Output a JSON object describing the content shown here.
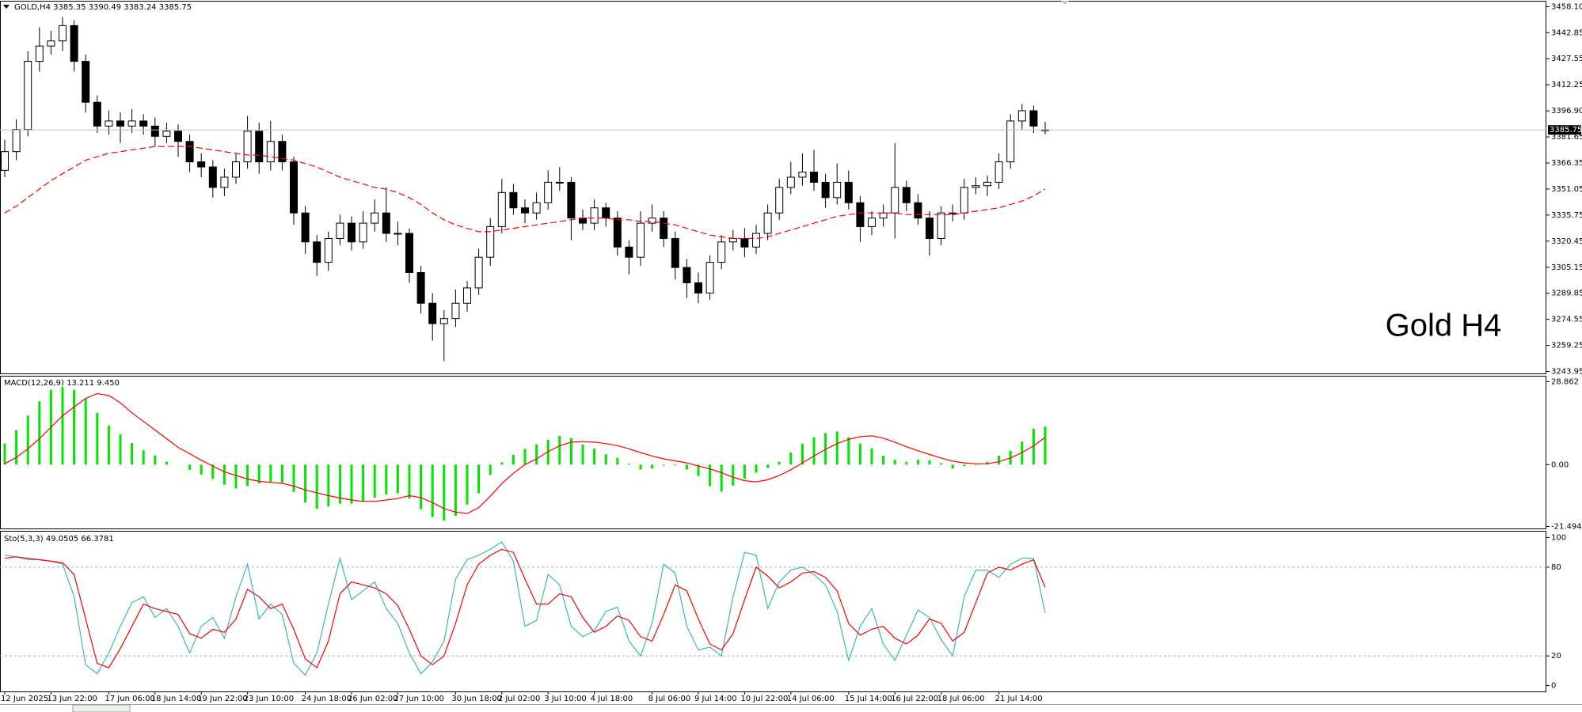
{
  "chart_data": [
    {
      "type": "candlestick",
      "title": "GOLD,H4  3385.35 3390.49 3383.24 3385.75",
      "annotation": "Gold H4",
      "bull_color": "#ffffff",
      "bear_color": "#000000",
      "current_line_color": "#c0c0c0",
      "categories": [
        "12 Jun 2025",
        null,
        null,
        null,
        "13 Jun 22:00",
        null,
        null,
        null,
        null,
        "17 Jun 06:00",
        null,
        null,
        null,
        "18 Jun 14:00",
        null,
        null,
        null,
        "19 Jun 22:00",
        null,
        null,
        null,
        "23 Jun 10:00",
        null,
        null,
        null,
        null,
        "24 Jun 18:00",
        null,
        null,
        null,
        "26 Jun 02:00",
        null,
        null,
        null,
        "27 Jun 10:00",
        null,
        null,
        null,
        null,
        "30 Jun 18:00",
        null,
        null,
        null,
        "2 Jul 02:00",
        null,
        null,
        null,
        "3 Jul 10:00",
        null,
        null,
        null,
        "4 Jul 18:00",
        null,
        null,
        null,
        null,
        "8 Jul 06:00",
        null,
        null,
        null,
        "9 Jul 14:00",
        null,
        null,
        null,
        "10 Jul 22:00",
        null,
        null,
        null,
        "14 Jul 06:00",
        null,
        null,
        null,
        null,
        "15 Jul 14:00",
        null,
        null,
        null,
        "16 Jul 22:00",
        null,
        null,
        null,
        "18 Jul 06:00",
        null,
        null,
        null,
        null,
        "21 Jul 14:00",
        null,
        null,
        null,
        null
      ],
      "open": [
        3362,
        3373,
        3386,
        3426,
        3435,
        3438,
        3447,
        3426,
        3402,
        3388,
        3391,
        3388,
        3391,
        3388,
        3382,
        3385,
        3379,
        3367,
        3364,
        3352,
        3358,
        3367,
        3385,
        3367,
        3379,
        3367,
        3337,
        3320,
        3308,
        3322,
        3331,
        3320,
        3331,
        3337,
        3325,
        3325,
        3302,
        3284,
        3272,
        3275,
        3284,
        3293,
        3311,
        3329,
        3349,
        3340,
        3337,
        3343,
        3355,
        3355,
        3334,
        3331,
        3340,
        3334,
        3317,
        3311,
        3331,
        3334,
        3322,
        3305,
        3296,
        3290,
        3308,
        3320,
        3322,
        3317,
        3325,
        3337,
        3352,
        3358,
        3361,
        3355,
        3346,
        3355,
        3343,
        3329,
        3334,
        3337,
        3352,
        3343,
        3334,
        3322,
        3337,
        3337,
        3352,
        3353,
        3355,
        3367,
        3391,
        3397,
        3385.35
      ],
      "high": [
        3380,
        3392,
        3432,
        3446,
        3444,
        3452,
        3450,
        3430,
        3406,
        3397,
        3396,
        3398,
        3395,
        3393,
        3390,
        3389,
        3383,
        3372,
        3368,
        3363,
        3372,
        3394,
        3390,
        3391,
        3383,
        3370,
        3341,
        3324,
        3326,
        3336,
        3335,
        3338,
        3345,
        3352,
        3332,
        3328,
        3306,
        3290,
        3280,
        3292,
        3297,
        3316,
        3334,
        3357,
        3354,
        3345,
        3349,
        3362,
        3364,
        3358,
        3339,
        3345,
        3343,
        3338,
        3321,
        3338,
        3342,
        3338,
        3326,
        3310,
        3302,
        3312,
        3324,
        3327,
        3328,
        3330,
        3342,
        3357,
        3367,
        3372,
        3374,
        3360,
        3366,
        3362,
        3347,
        3338,
        3342,
        3378,
        3356,
        3348,
        3338,
        3341,
        3342,
        3357,
        3358,
        3359,
        3372,
        3395,
        3401,
        3400,
        3390.49
      ],
      "low": [
        3358,
        3368,
        3382,
        3420,
        3430,
        3432,
        3420,
        3396,
        3384,
        3383,
        3378,
        3384,
        3383,
        3376,
        3378,
        3370,
        3361,
        3358,
        3346,
        3347,
        3354,
        3363,
        3360,
        3362,
        3362,
        3330,
        3313,
        3300,
        3303,
        3318,
        3315,
        3316,
        3326,
        3320,
        3318,
        3296,
        3278,
        3262,
        3250,
        3270,
        3279,
        3289,
        3306,
        3325,
        3336,
        3331,
        3333,
        3339,
        3350,
        3321,
        3327,
        3327,
        3329,
        3312,
        3301,
        3306,
        3326,
        3317,
        3298,
        3287,
        3284,
        3286,
        3304,
        3315,
        3311,
        3313,
        3321,
        3333,
        3348,
        3353,
        3350,
        3340,
        3342,
        3339,
        3320,
        3324,
        3329,
        3322,
        3338,
        3330,
        3312,
        3318,
        3332,
        3333,
        3348,
        3347,
        3351,
        3363,
        3386,
        3384,
        3383.24
      ],
      "close": [
        3373,
        3386,
        3426,
        3435,
        3438,
        3447,
        3426,
        3402,
        3388,
        3391,
        3388,
        3391,
        3388,
        3382,
        3385,
        3379,
        3367,
        3364,
        3352,
        3358,
        3367,
        3385,
        3367,
        3379,
        3367,
        3337,
        3320,
        3308,
        3322,
        3331,
        3320,
        3331,
        3337,
        3325,
        3325,
        3302,
        3284,
        3272,
        3275,
        3284,
        3293,
        3311,
        3329,
        3349,
        3340,
        3337,
        3343,
        3355,
        3355,
        3334,
        3331,
        3340,
        3334,
        3317,
        3311,
        3331,
        3334,
        3322,
        3305,
        3296,
        3290,
        3308,
        3320,
        3322,
        3317,
        3325,
        3337,
        3352,
        3358,
        3361,
        3355,
        3346,
        3355,
        3343,
        3329,
        3334,
        3337,
        3352,
        3343,
        3334,
        3322,
        3337,
        3337,
        3352,
        3353,
        3355,
        3367,
        3391,
        3397,
        3388,
        3385.75
      ],
      "overlay": {
        "color": "#ff0000",
        "dashed": true,
        "values": [
          3337,
          3341,
          3346,
          3351,
          3356,
          3360,
          3364,
          3368,
          3370,
          3372,
          3373,
          3374,
          3375,
          3376,
          3376,
          3376,
          3376,
          3375,
          3374,
          3373,
          3372,
          3371,
          3371,
          3370,
          3369,
          3368,
          3366,
          3364,
          3361,
          3358,
          3356,
          3354,
          3352,
          3351,
          3349,
          3346,
          3342,
          3337,
          3333,
          3330,
          3328,
          3326,
          3326,
          3327,
          3328,
          3329,
          3330,
          3331,
          3332,
          3333,
          3334,
          3334,
          3334,
          3333,
          3333,
          3332,
          3332,
          3331,
          3330,
          3328,
          3326,
          3324,
          3323,
          3322,
          3322,
          3322,
          3323,
          3325,
          3327,
          3329,
          3331,
          3333,
          3335,
          3336,
          3337,
          3337,
          3337,
          3337,
          3336,
          3336,
          3336,
          3336,
          3336,
          3337,
          3338,
          3339,
          3340,
          3342,
          3344,
          3347,
          3351
        ]
      },
      "ylim": [
        3242.8,
        3461.1
      ],
      "yticks": [
        {
          "value": 3458.1,
          "label": "3458.10"
        },
        3442.85,
        3427.55,
        3412.25,
        {
          "value": 3396.9,
          "label": "3396.90"
        },
        3381.65,
        3366.35,
        3351.05,
        3335.75,
        3320.45,
        3305.15,
        3289.85,
        3274.55,
        3259.25,
        3243.95
      ]
    },
    {
      "type": "macd",
      "title": "MACD(12,26,9) 13.211 9.450",
      "histogram": {
        "color": "#00e600",
        "values": [
          7.3,
          12,
          17,
          22,
          26,
          27,
          26,
          23,
          18,
          13.5,
          10.5,
          7.5,
          5,
          3.2,
          1,
          0,
          -1.8,
          -3.5,
          -5,
          -7,
          -8.3,
          -7.5,
          -6.6,
          -6,
          -6.3,
          -9.5,
          -13.2,
          -15.3,
          -14.6,
          -13.6,
          -13.6,
          -12.9,
          -11.5,
          -10.4,
          -10,
          -11.8,
          -15.5,
          -18.2,
          -19.5,
          -17.8,
          -13.9,
          -10,
          -3.6,
          0.8,
          3.4,
          5.5,
          7,
          8.6,
          10,
          9.2,
          7,
          5.6,
          3.6,
          2.3,
          0.3,
          -1.7,
          -1.4,
          -0.3,
          -0.3,
          -1.7,
          -4,
          -7.5,
          -9.4,
          -7.3,
          -5,
          -2.8,
          -1.2,
          1,
          4.2,
          7.3,
          9.5,
          11,
          11.5,
          9.5,
          7.3,
          5.6,
          3.1,
          1.7,
          1,
          1.7,
          1.5,
          0.5,
          -1.4,
          -0.5,
          -0.2,
          1,
          3.1,
          4.8,
          8,
          12.5,
          13.211
        ]
      },
      "signal": {
        "color": "#ff0000",
        "values": [
          0.3,
          2.5,
          5.5,
          9,
          13,
          17,
          20,
          23,
          24.7,
          24,
          21.5,
          18,
          15,
          12,
          9,
          6,
          3.8,
          1.5,
          -0.5,
          -2.5,
          -3.8,
          -5,
          -5.8,
          -6.2,
          -6.5,
          -7.5,
          -8.8,
          -9.8,
          -10.8,
          -11.6,
          -12.3,
          -12.8,
          -12.8,
          -12.3,
          -11.8,
          -10.8,
          -11.5,
          -13.2,
          -15.3,
          -16.5,
          -17,
          -15,
          -11,
          -6.6,
          -3,
          0,
          2,
          4.5,
          6.5,
          7.8,
          8,
          7.8,
          7.3,
          6.6,
          5.5,
          4.2,
          3,
          2,
          1.3,
          0.6,
          -0.5,
          -1.5,
          -2.8,
          -4.4,
          -5.6,
          -6,
          -5.3,
          -3.8,
          -1.8,
          0.6,
          3,
          5.3,
          7.3,
          8.8,
          9.7,
          10,
          9.2,
          7.8,
          6.2,
          4.8,
          3.5,
          2.3,
          1.2,
          0.6,
          0.3,
          0.3,
          1,
          2.3,
          4.2,
          6.5,
          9.45
        ]
      },
      "ylim": [
        -22.2,
        30.6
      ],
      "yticks": [
        28.862,
        {
          "value": 0,
          "label": "0.00"
        },
        -21.494
      ]
    },
    {
      "type": "stochastic",
      "title": "Sto(5,3,3) 49.0505 66.3781",
      "main": {
        "color": "#3cb8b8",
        "values": [
          88,
          87,
          85,
          85,
          84,
          82,
          60,
          14,
          8,
          22,
          40,
          56,
          60,
          46,
          52,
          40,
          22,
          40,
          46,
          32,
          60,
          82,
          45,
          55,
          48,
          15,
          7,
          22,
          55,
          86,
          58,
          64,
          70,
          52,
          42,
          22,
          8,
          16,
          30,
          72,
          85,
          88,
          92,
          97,
          84,
          40,
          44,
          75,
          68,
          40,
          33,
          37,
          50,
          53,
          30,
          20,
          42,
          82,
          76,
          40,
          24,
          26,
          20,
          60,
          90,
          88,
          52,
          70,
          78,
          80,
          75,
          68,
          50,
          17,
          40,
          52,
          28,
          17,
          34,
          51,
          46,
          31,
          20,
          60,
          78,
          78,
          73,
          82,
          86,
          86,
          49.0505
        ]
      },
      "signal": {
        "color": "#ff0000",
        "values": [
          86,
          87,
          86,
          85,
          84,
          83,
          75,
          45,
          15,
          12,
          25,
          40,
          55,
          52,
          50,
          48,
          35,
          32,
          38,
          36,
          45,
          65,
          60,
          52,
          55,
          38,
          18,
          12,
          30,
          62,
          70,
          68,
          66,
          62,
          54,
          38,
          20,
          14,
          20,
          42,
          68,
          82,
          88,
          92,
          90,
          72,
          55,
          55,
          62,
          60,
          46,
          36,
          40,
          47,
          44,
          33,
          30,
          48,
          68,
          64,
          45,
          28,
          24,
          35,
          58,
          80,
          74,
          66,
          70,
          76,
          77,
          73,
          64,
          42,
          34,
          38,
          40,
          32,
          28,
          34,
          45,
          42,
          30,
          36,
          56,
          76,
          80,
          78,
          82,
          85,
          66.3781
        ]
      },
      "levels": [
        80,
        20
      ],
      "ylim": [
        -4,
        104
      ],
      "yticks": [
        100,
        80,
        20,
        0
      ]
    }
  ]
}
